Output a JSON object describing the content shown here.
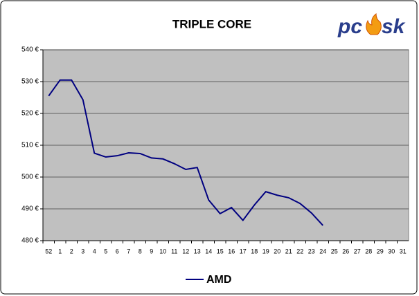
{
  "chart_data": {
    "type": "line",
    "title": "TRIPLE CORE",
    "logo": [
      "pc",
      "sk"
    ],
    "categories": [
      "52",
      "1",
      "2",
      "3",
      "4",
      "5",
      "6",
      "7",
      "8",
      "9",
      "10",
      "11",
      "12",
      "13",
      "14",
      "15",
      "16",
      "17",
      "18",
      "19",
      "20",
      "21",
      "22",
      "23",
      "24",
      "25",
      "26",
      "27",
      "28",
      "29",
      "30",
      "31"
    ],
    "series": [
      {
        "name": "AMD",
        "color": "#000080",
        "values": [
          525.5,
          530.5,
          530.5,
          524.3,
          507.5,
          506.3,
          506.7,
          507.6,
          507.4,
          506,
          505.7,
          504.2,
          502.4,
          503,
          492.8,
          488.5,
          490.4,
          486.4,
          491.2,
          495.4,
          494.3,
          493.5,
          491.7,
          488.7,
          484.8,
          null,
          null,
          null,
          null,
          null,
          null,
          null
        ]
      }
    ],
    "ylim": [
      480,
      540
    ],
    "yticks": [
      {
        "value": 480,
        "label": "480 €"
      },
      {
        "value": 490,
        "label": "490 €"
      },
      {
        "value": 500,
        "label": "500 €"
      },
      {
        "value": 510,
        "label": "510 €"
      },
      {
        "value": 520,
        "label": "520 €"
      },
      {
        "value": 530,
        "label": "530 €"
      },
      {
        "value": 540,
        "label": "540 €"
      }
    ],
    "grid": true,
    "legend": "bottom"
  }
}
